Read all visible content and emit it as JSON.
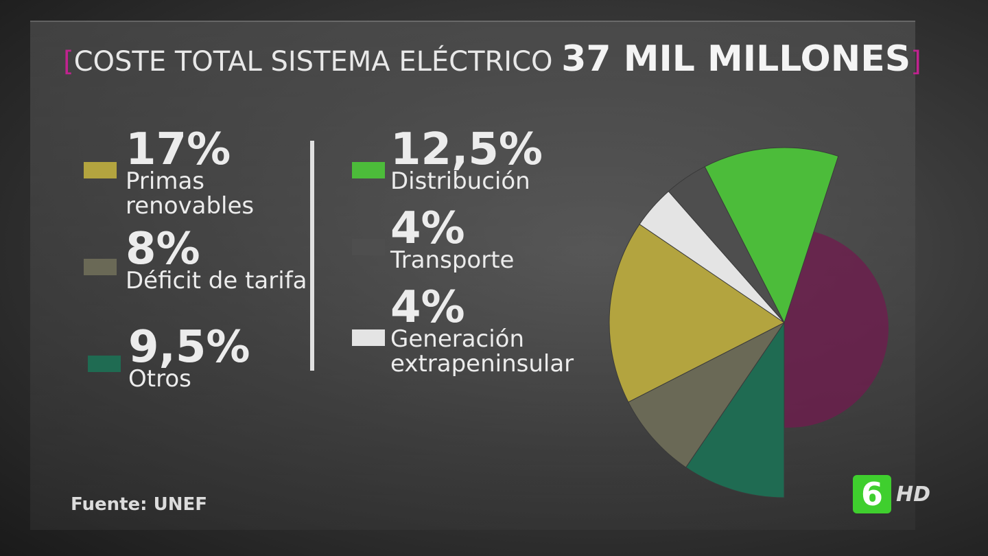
{
  "chart_data": {
    "type": "pie",
    "title": "COSTE TOTAL SISTEMA ELÉCTRICO",
    "subtitle": "37 MIL MILLONES",
    "categories": [
      "Primas renovables",
      "Déficit de tarifa",
      "Otros",
      "Distribución",
      "Transporte",
      "Generación extrapeninsular"
    ],
    "values": [
      17,
      8,
      9.5,
      12.5,
      4,
      4
    ],
    "value_labels": [
      "17%",
      "8%",
      "9,5%",
      "12,5%",
      "4%",
      "4%"
    ],
    "colors": [
      "#b3a43f",
      "#6a6956",
      "#1f6b52",
      "#4cbc3a",
      "#4e4e4e",
      "#e4e4e4"
    ],
    "source": "Fuente: UNEF"
  },
  "logo": {
    "channel": "6",
    "badge": "HD"
  }
}
